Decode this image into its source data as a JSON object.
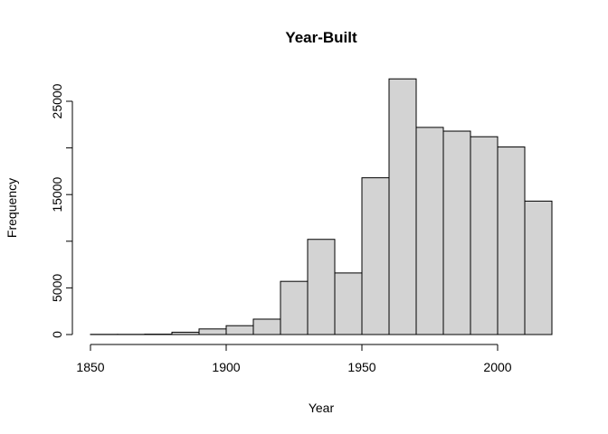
{
  "chart_data": {
    "type": "bar",
    "title": "Year-Built",
    "xlabel": "Year",
    "ylabel": "Frequency",
    "bins": [
      {
        "start": 1850,
        "end": 1860,
        "count": 20
      },
      {
        "start": 1860,
        "end": 1870,
        "count": 20
      },
      {
        "start": 1870,
        "end": 1880,
        "count": 40
      },
      {
        "start": 1880,
        "end": 1890,
        "count": 250
      },
      {
        "start": 1890,
        "end": 1900,
        "count": 600
      },
      {
        "start": 1900,
        "end": 1910,
        "count": 950
      },
      {
        "start": 1910,
        "end": 1920,
        "count": 1650
      },
      {
        "start": 1920,
        "end": 1930,
        "count": 5700
      },
      {
        "start": 1930,
        "end": 1940,
        "count": 10200
      },
      {
        "start": 1940,
        "end": 1950,
        "count": 6600
      },
      {
        "start": 1950,
        "end": 1960,
        "count": 16800
      },
      {
        "start": 1960,
        "end": 1970,
        "count": 27400
      },
      {
        "start": 1970,
        "end": 1980,
        "count": 22200
      },
      {
        "start": 1980,
        "end": 1990,
        "count": 21800
      },
      {
        "start": 1990,
        "end": 2000,
        "count": 21200
      },
      {
        "start": 2000,
        "end": 2010,
        "count": 20100
      },
      {
        "start": 2010,
        "end": 2020,
        "count": 14300
      }
    ],
    "x_ticks": [
      1850,
      1900,
      1950,
      2000
    ],
    "x_tick_labels": [
      "1850",
      "1900",
      "1950",
      "2000"
    ],
    "y_ticks": [
      0,
      5000,
      10000,
      15000,
      20000,
      25000
    ],
    "y_tick_labels": [
      "0",
      "5000",
      "",
      "15000",
      "",
      "25000"
    ],
    "xlim": [
      1850,
      2020
    ],
    "ylim": [
      0,
      27400
    ],
    "grid": false,
    "legend": "none",
    "colors": {
      "bar_fill": "#d3d3d3",
      "bar_stroke": "#000000"
    }
  }
}
